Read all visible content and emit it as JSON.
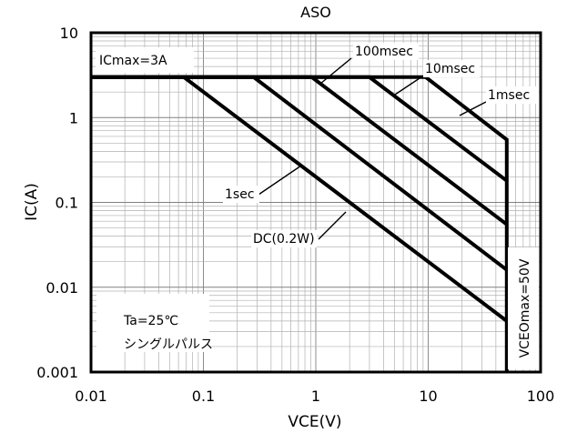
{
  "chart_data": {
    "type": "line",
    "title": "ASO",
    "xlabel": "VCE(V)",
    "ylabel": "IC(A)",
    "xscale": "log",
    "yscale": "log",
    "xlim": [
      0.01,
      100
    ],
    "ylim": [
      0.001,
      10
    ],
    "xticks": [
      "0.01",
      "0.1",
      "1",
      "10",
      "100"
    ],
    "yticks": [
      "0.001",
      "0.01",
      "0.1",
      "1",
      "10"
    ],
    "grid": true,
    "series": [
      {
        "name": "DC(0.2W)",
        "x": [
          0.01,
          0.067,
          50
        ],
        "y": [
          3,
          3,
          0.004
        ]
      },
      {
        "name": "1sec",
        "x": [
          0.01,
          0.28,
          50
        ],
        "y": [
          3,
          3,
          0.016
        ]
      },
      {
        "name": "100msec",
        "x": [
          0.01,
          0.92,
          50
        ],
        "y": [
          3,
          3,
          0.055
        ]
      },
      {
        "name": "10msec",
        "x": [
          0.01,
          3.0,
          50
        ],
        "y": [
          3,
          3,
          0.18
        ]
      },
      {
        "name": "1msec",
        "x": [
          0.01,
          9.5,
          50,
          50
        ],
        "y": [
          3,
          3,
          0.55,
          0.001
        ]
      }
    ],
    "annotations": {
      "icmax": "ICmax=3A",
      "vceomax": "VCEOmax=50V",
      "condition_line1": "Ta=25℃",
      "condition_line2": "シングルパルス"
    }
  }
}
